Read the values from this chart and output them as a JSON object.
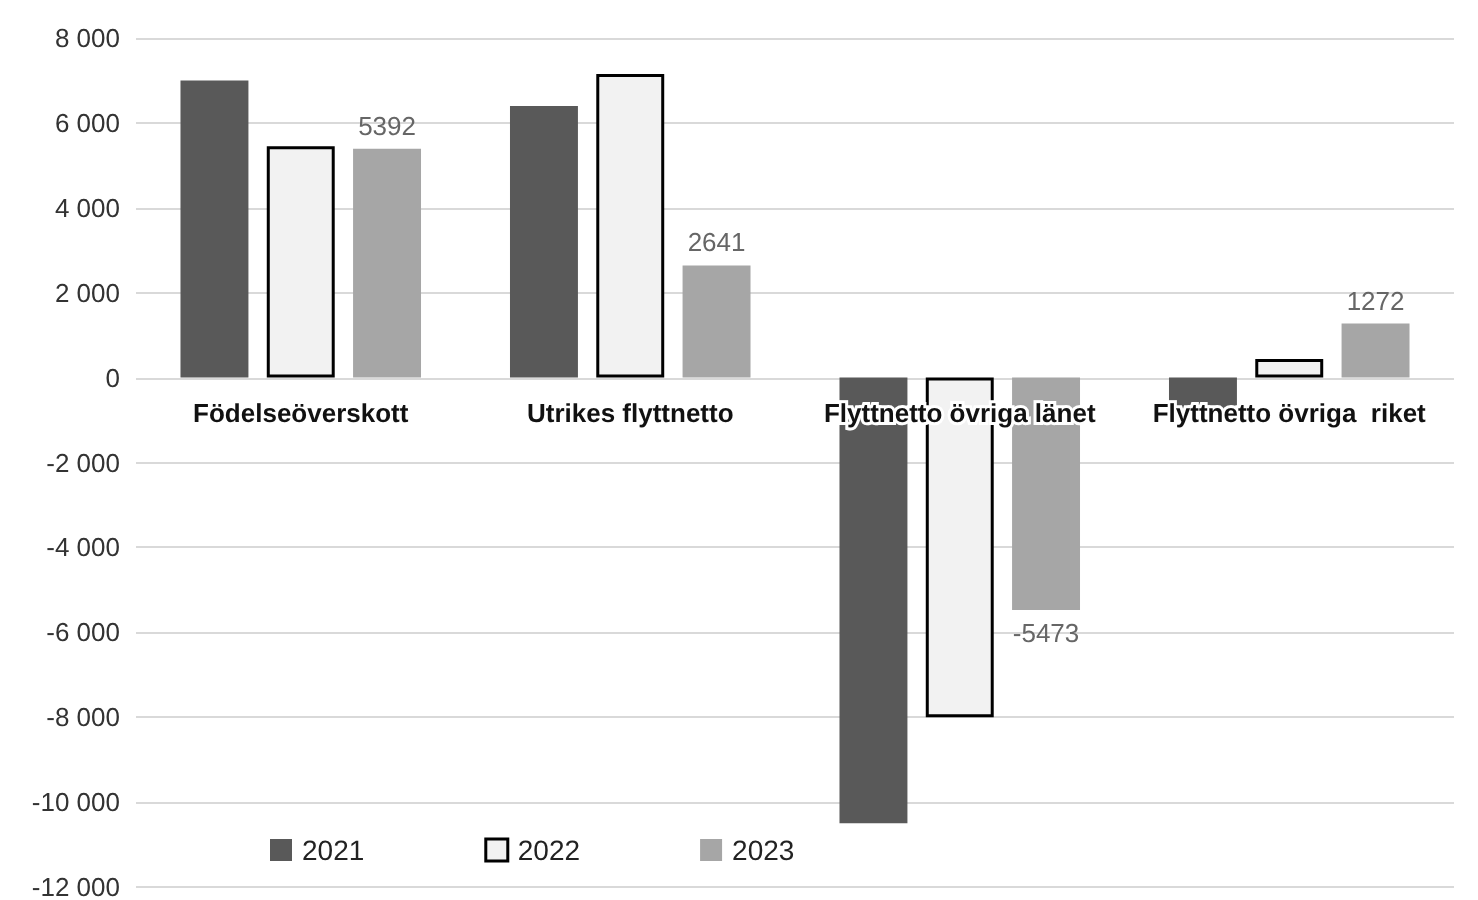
{
  "chart_data": {
    "type": "bar",
    "categories": [
      "Födelseöverskott",
      "Utrikes flyttnetto",
      "Flyttnetto övriga länet",
      "Flyttnetto övriga  riket"
    ],
    "series": [
      {
        "name": "2021",
        "color": "#595959",
        "values": [
          7000,
          6400,
          -10500,
          -850
        ]
      },
      {
        "name": "2022",
        "color": "#f2f2f2",
        "values": [
          5450,
          7150,
          -8000,
          440
        ]
      },
      {
        "name": "2023",
        "color": "#a6a6a6",
        "values": [
          5392,
          2641,
          -5473,
          1272
        ],
        "value_labels": [
          "5392",
          "2641",
          "-5473",
          "1272"
        ]
      }
    ],
    "ylim": [
      -12000,
      8000
    ],
    "yticks": [
      {
        "value": -12000,
        "label": "-12 000"
      },
      {
        "value": -10000,
        "label": "-10 000"
      },
      {
        "value": -8000,
        "label": "-8 000"
      },
      {
        "value": -6000,
        "label": "-6 000"
      },
      {
        "value": -4000,
        "label": "-4 000"
      },
      {
        "value": -2000,
        "label": "-2 000"
      },
      0,
      {
        "value": 2000,
        "label": "2 000"
      },
      {
        "value": 4000,
        "label": "4 000"
      },
      {
        "value": 6000,
        "label": "6 000"
      },
      {
        "value": 8000,
        "label": "8 000"
      }
    ],
    "grid": "y",
    "legend": "bottom left"
  }
}
